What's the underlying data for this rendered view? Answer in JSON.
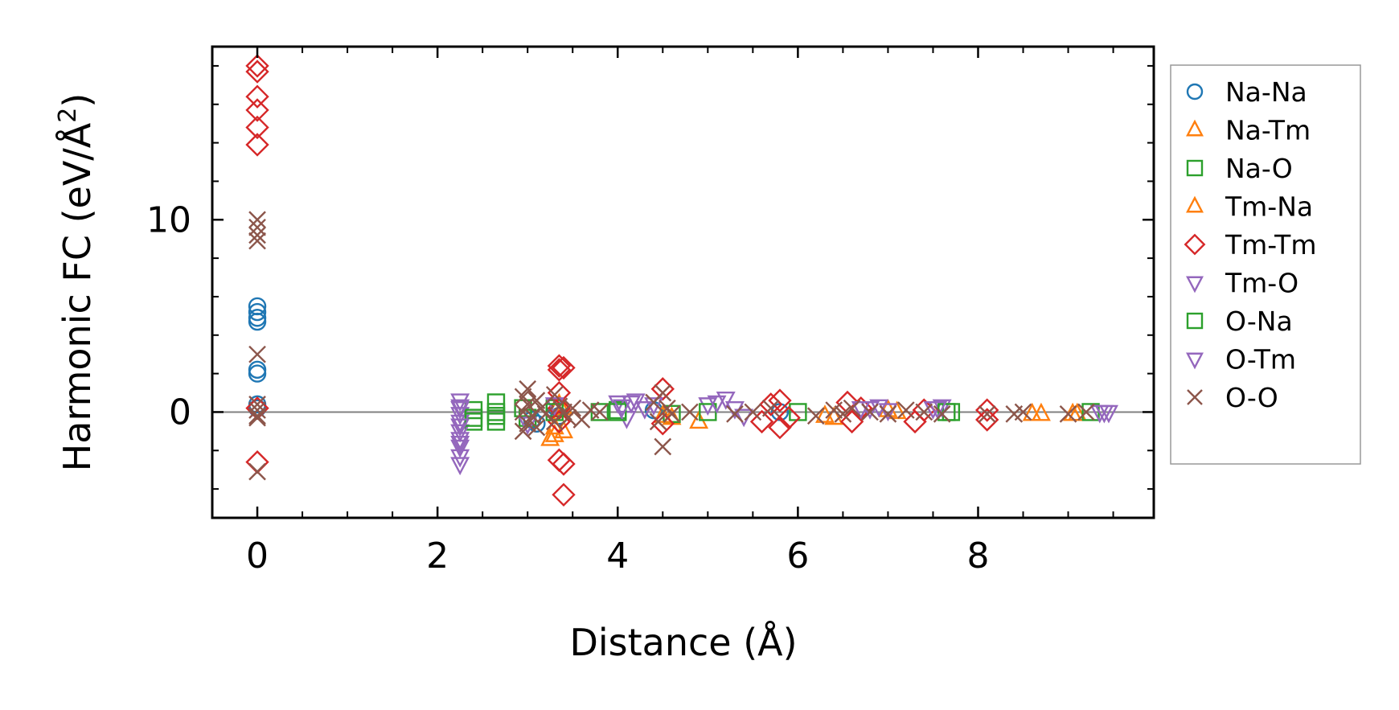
{
  "chart_data": {
    "type": "scatter",
    "title": "",
    "xlabel": "Distance (Å)",
    "ylabel": "Harmonic FC (eV/Å²)",
    "ylabel_main": "Harmonic FC (eV/Å",
    "ylabel_sup": "2",
    "ylabel_end": ")",
    "xlim": [
      -0.5,
      9.95
    ],
    "ylim": [
      -5.5,
      19
    ],
    "xticks": [
      0,
      2,
      4,
      6,
      8
    ],
    "xtick_labels": [
      "0",
      "2",
      "4",
      "6",
      "8"
    ],
    "yticks": [
      0,
      10
    ],
    "ytick_labels": [
      "0",
      "10"
    ],
    "grid": false,
    "legend_position": "outside-right",
    "zero_line": true,
    "series": [
      {
        "name": "Na-Na",
        "marker": "circle",
        "color": "#1f77b4",
        "x": [
          0,
          0,
          0,
          0,
          0,
          0,
          0,
          0,
          3.05,
          3.1,
          3.3,
          3.35,
          4.4,
          5.8
        ],
        "y": [
          5.5,
          5.2,
          4.9,
          4.7,
          2.2,
          2.0,
          0.4,
          0.2,
          -0.4,
          -0.6,
          0.3,
          -0.2,
          0.1,
          0.0
        ]
      },
      {
        "name": "Na-Tm",
        "marker": "triangle-up",
        "color": "#ff7f0e",
        "x": [
          3.25,
          3.3,
          3.35,
          3.4,
          4.6,
          4.9,
          6.3,
          7.0,
          8.6,
          9.1
        ],
        "y": [
          -1.4,
          -0.8,
          0.4,
          -1.0,
          -0.3,
          -0.5,
          -0.2,
          0.1,
          -0.1,
          -0.1
        ]
      },
      {
        "name": "Na-O",
        "marker": "square",
        "color": "#2ca02c",
        "x": [
          2.4,
          2.4,
          2.65,
          2.65,
          2.65,
          3.0,
          3.3,
          3.8,
          4.0,
          4.6,
          6.0,
          7.7,
          9.25
        ],
        "y": [
          -0.5,
          0.1,
          0.5,
          0.0,
          -0.5,
          -0.3,
          0.2,
          0.0,
          0.1,
          -0.1,
          0.0,
          0.0,
          0.0
        ]
      },
      {
        "name": "Tm-Na",
        "marker": "triangle-up",
        "color": "#ff7f0e",
        "x": [
          3.3,
          3.4,
          4.5,
          6.4,
          7.1,
          8.7,
          9.05
        ],
        "y": [
          -1.2,
          0.2,
          -0.2,
          -0.3,
          0.0,
          -0.1,
          -0.1
        ]
      },
      {
        "name": "Tm-Tm",
        "marker": "diamond",
        "color": "#d62728",
        "x": [
          0,
          0,
          0,
          0,
          0,
          0,
          0,
          0,
          3.35,
          3.35,
          3.35,
          3.35,
          3.35,
          3.35,
          3.4,
          3.4,
          3.4,
          4.5,
          4.5,
          5.6,
          5.7,
          5.8,
          5.8,
          5.9,
          6.55,
          6.6,
          6.7,
          7.3,
          7.4,
          8.1,
          8.1
        ],
        "y": [
          18.0,
          17.7,
          16.4,
          15.7,
          14.8,
          13.9,
          0.2,
          -2.6,
          2.4,
          2.2,
          1.0,
          0.2,
          -0.5,
          -2.5,
          -2.7,
          -4.3,
          2.3,
          1.2,
          -0.6,
          -0.5,
          0.4,
          0.6,
          -0.8,
          -0.3,
          0.5,
          -0.5,
          0.2,
          -0.5,
          0.1,
          0.1,
          -0.4
        ]
      },
      {
        "name": "Tm-O",
        "marker": "triangle-down",
        "color": "#9467bd",
        "x": [
          2.25,
          2.25,
          2.25,
          2.25,
          2.25,
          2.25,
          2.25,
          2.25,
          2.25,
          3.3,
          4.0,
          4.1,
          4.2,
          4.3,
          4.4,
          5.0,
          5.2,
          5.4,
          6.7,
          6.9,
          7.0,
          7.5,
          7.6,
          9.4,
          9.45
        ],
        "y": [
          0.6,
          0.3,
          -0.1,
          -0.5,
          -1.0,
          -1.4,
          -1.8,
          -2.3,
          -2.7,
          0.4,
          0.5,
          -0.3,
          0.6,
          0.2,
          0.4,
          0.4,
          0.7,
          -0.2,
          0.2,
          0.3,
          0.1,
          0.2,
          0.3,
          0.0,
          0.0
        ]
      },
      {
        "name": "O-Na",
        "marker": "square",
        "color": "#2ca02c",
        "x": [
          2.4,
          2.65,
          2.95,
          3.3,
          4.0,
          5.0,
          7.65
        ],
        "y": [
          -0.3,
          -0.2,
          0.2,
          0.0,
          0.0,
          0.0,
          0.0
        ]
      },
      {
        "name": "O-Tm",
        "marker": "triangle-down",
        "color": "#9467bd",
        "x": [
          2.25,
          2.25,
          2.25,
          3.0,
          4.05,
          4.15,
          5.1,
          5.3,
          6.8,
          7.55,
          9.35
        ],
        "y": [
          0.2,
          -0.7,
          -1.6,
          -0.6,
          0.3,
          0.5,
          0.5,
          0.2,
          0.2,
          0.2,
          0.0
        ]
      },
      {
        "name": "O-O",
        "marker": "x",
        "color": "#8c564b",
        "x": [
          0,
          0,
          0,
          0,
          0,
          0,
          0,
          0,
          0,
          0,
          2.95,
          2.95,
          2.95,
          3.0,
          3.0,
          3.0,
          3.05,
          3.1,
          3.1,
          3.15,
          3.2,
          3.3,
          3.3,
          3.35,
          3.4,
          3.45,
          3.5,
          3.6,
          3.7,
          3.8,
          4.4,
          4.45,
          4.5,
          4.5,
          4.55,
          4.6,
          4.8,
          5.3,
          5.5,
          5.7,
          6.2,
          6.4,
          6.5,
          6.6,
          6.8,
          7.0,
          7.2,
          7.4,
          7.6,
          8.1,
          8.4,
          8.5,
          9.0,
          9.2
        ],
        "y": [
          10.0,
          9.6,
          9.2,
          8.9,
          3.0,
          0.4,
          0.1,
          -0.2,
          -0.3,
          -3.1,
          0.8,
          0.0,
          -1.0,
          1.2,
          0.4,
          -0.6,
          -0.2,
          0.6,
          -0.8,
          0.2,
          -0.1,
          0.9,
          -0.5,
          0.3,
          0.0,
          -0.3,
          0.2,
          -0.4,
          0.1,
          0.0,
          0.5,
          -0.5,
          1.0,
          -1.8,
          0.2,
          -0.1,
          0.0,
          -0.1,
          0.0,
          0.2,
          -0.2,
          0.1,
          -0.1,
          0.2,
          0.0,
          -0.1,
          0.1,
          0.0,
          -0.1,
          -0.1,
          -0.1,
          0.0,
          -0.1,
          0.0
        ]
      }
    ]
  }
}
